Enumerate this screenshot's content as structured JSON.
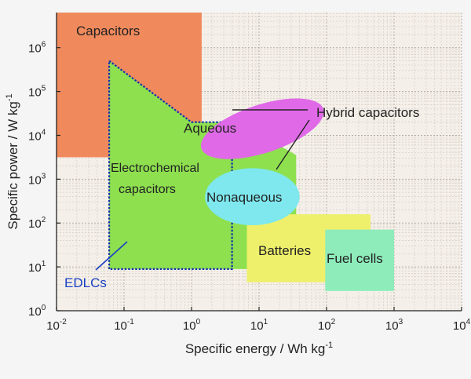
{
  "chart_data": {
    "type": "area",
    "title": "",
    "xlabel": "Specific energy / Wh kg",
    "xlabel_sup": "-1",
    "ylabel": "Specific power / W kg",
    "ylabel_sup": "-1",
    "x_scale": "log",
    "y_scale": "log",
    "xlim_exp": [
      -2,
      4
    ],
    "ylim_exp": [
      0,
      6.8
    ],
    "x_ticks": [
      {
        "base": "10",
        "exp": "-2"
      },
      {
        "base": "10",
        "exp": "-1"
      },
      {
        "base": "10",
        "exp": "0"
      },
      {
        "base": "10",
        "exp": "1"
      },
      {
        "base": "10",
        "exp": "2"
      },
      {
        "base": "10",
        "exp": "3"
      },
      {
        "base": "10",
        "exp": "4"
      }
    ],
    "y_ticks": [
      {
        "base": "10",
        "exp": "0"
      },
      {
        "base": "10",
        "exp": "1"
      },
      {
        "base": "10",
        "exp": "2"
      },
      {
        "base": "10",
        "exp": "3"
      },
      {
        "base": "10",
        "exp": "4"
      },
      {
        "base": "10",
        "exp": "5"
      },
      {
        "base": "10",
        "exp": "6"
      }
    ],
    "grid": true,
    "regions": [
      {
        "name": "Capacitors",
        "label": "Capacitors",
        "color": "#f08a5d",
        "energy_log": [
          -2,
          0.15
        ],
        "power_log": [
          3.5,
          6.8
        ]
      },
      {
        "name": "Electrochemical capacitors",
        "label": "Electrochemical capacitors",
        "color": "#8ee04f",
        "polygon_log": [
          [
            -1.22,
            0.95
          ],
          [
            -1.22,
            5.7
          ],
          [
            0,
            4.3
          ],
          [
            0.7,
            4.3
          ],
          [
            1.55,
            3.55
          ],
          [
            1.55,
            0.95
          ]
        ]
      },
      {
        "name": "EDLCs",
        "label": "EDLCs",
        "color": "#1133aa",
        "polygon_log": [
          [
            -1.22,
            0.95
          ],
          [
            -1.22,
            5.7
          ],
          [
            0,
            4.3
          ],
          [
            0.6,
            4.3
          ],
          [
            0.6,
            0.95
          ]
        ]
      },
      {
        "name": "Aqueous",
        "label": "Aqueous",
        "color": "#e069e8",
        "center_log": [
          1.05,
          4.15
        ],
        "radius_log": [
          0.95,
          0.55
        ],
        "rotate_deg": -18
      },
      {
        "name": "Nonaqueous",
        "label": "Nonaqueous",
        "color": "#7ee8ee",
        "center_log": [
          0.9,
          2.6
        ],
        "radius_log": [
          0.7,
          0.65
        ]
      },
      {
        "name": "Batteries",
        "label": "Batteries",
        "color": "#eef06b",
        "energy_log": [
          0.82,
          2.65
        ],
        "power_log": [
          0.65,
          2.2
        ]
      },
      {
        "name": "Fuel cells",
        "label": "Fuel cells",
        "color": "#8eecbb",
        "energy_log": [
          1.98,
          3.0
        ],
        "power_log": [
          0.45,
          1.85
        ]
      }
    ],
    "annotations": [
      {
        "text": "Hybrid capacitors",
        "color": "#222222"
      },
      {
        "text": "EDLCs",
        "color": "#1a3fc4"
      }
    ]
  }
}
